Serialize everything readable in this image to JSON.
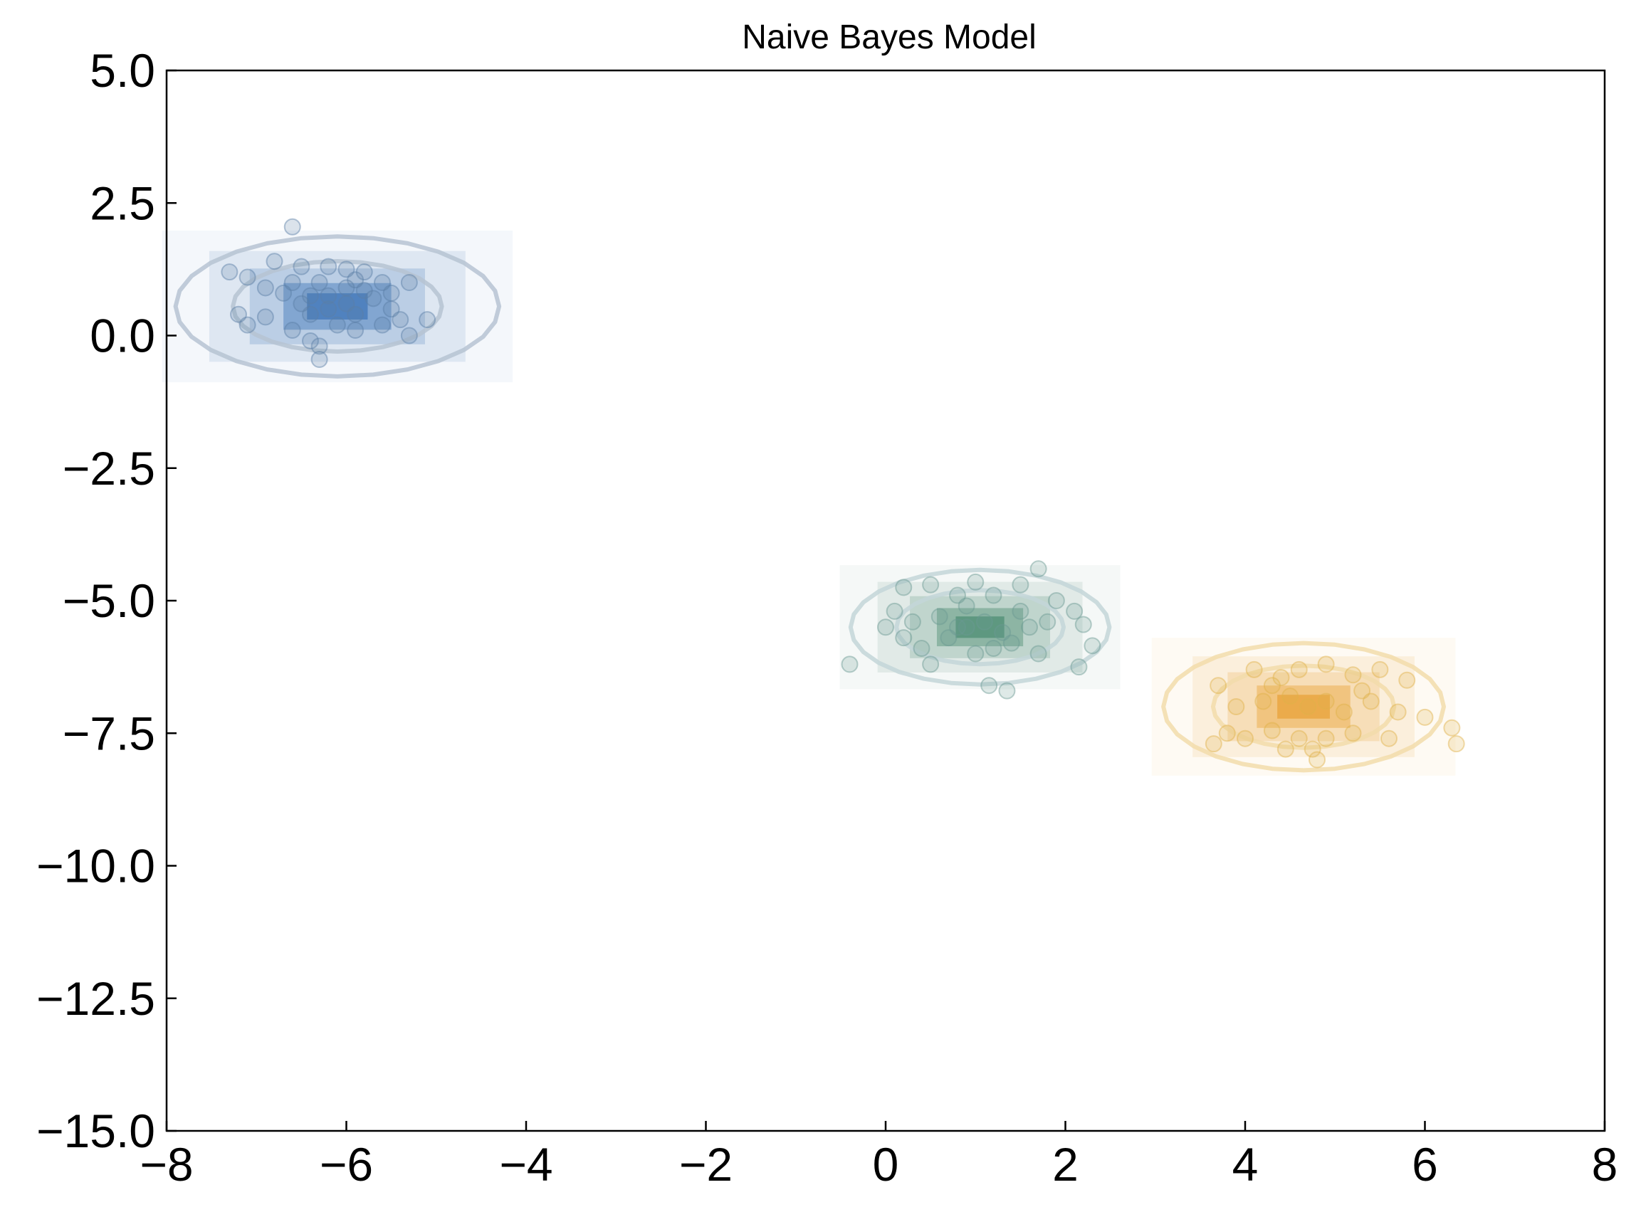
{
  "chart_data": {
    "type": "scatter",
    "title": "Naive Bayes Model",
    "xlabel": "",
    "ylabel": "",
    "xlim": [
      -8,
      8
    ],
    "ylim": [
      -15,
      5
    ],
    "xticks": [
      -8,
      -6,
      -4,
      -2,
      0,
      2,
      4,
      6,
      8
    ],
    "xtick_labels": [
      "−8",
      "−6",
      "−4",
      "−2",
      "0",
      "2",
      "4",
      "6",
      "8"
    ],
    "yticks": [
      5,
      2.5,
      0,
      -2.5,
      -5,
      -7.5,
      -10,
      -12.5,
      -15
    ],
    "ytick_labels": [
      "5.0",
      "2.5",
      "0.0",
      "−2.5",
      "−5.0",
      "−7.5",
      "−10.0",
      "−12.5",
      "−15.0"
    ],
    "grid": false,
    "legend": "none",
    "series": [
      {
        "color": "#5b7fa6",
        "density_color": "#3f76b8",
        "contour_color": "#b6c3d2",
        "mean": [
          -6.1,
          0.55
        ],
        "std": [
          0.75,
          0.55
        ],
        "points": [
          [
            -7.1,
            1.1
          ],
          [
            -6.8,
            1.4
          ],
          [
            -6.6,
            2.05
          ],
          [
            -6.5,
            1.3
          ],
          [
            -6.3,
            1.0
          ],
          [
            -6.2,
            1.3
          ],
          [
            -6.0,
            1.25
          ],
          [
            -5.8,
            1.2
          ],
          [
            -5.6,
            1.0
          ],
          [
            -5.3,
            1.0
          ],
          [
            -6.9,
            0.9
          ],
          [
            -6.7,
            0.8
          ],
          [
            -6.5,
            0.6
          ],
          [
            -6.4,
            0.4
          ],
          [
            -6.2,
            0.5
          ],
          [
            -6.0,
            0.6
          ],
          [
            -5.9,
            0.4
          ],
          [
            -5.7,
            0.7
          ],
          [
            -5.5,
            0.5
          ],
          [
            -5.4,
            0.3
          ],
          [
            -7.3,
            1.2
          ],
          [
            -7.2,
            0.4
          ],
          [
            -7.1,
            0.2
          ],
          [
            -6.9,
            0.35
          ],
          [
            -6.6,
            0.1
          ],
          [
            -6.4,
            -0.1
          ],
          [
            -6.3,
            -0.2
          ],
          [
            -6.3,
            -0.45
          ],
          [
            -6.1,
            0.2
          ],
          [
            -5.9,
            0.1
          ],
          [
            -5.6,
            0.2
          ],
          [
            -5.3,
            0.0
          ],
          [
            -5.1,
            0.3
          ],
          [
            -6.0,
            0.9
          ],
          [
            -5.8,
            0.85
          ],
          [
            -6.6,
            1.0
          ],
          [
            -5.5,
            0.8
          ],
          [
            -6.2,
            0.75
          ],
          [
            -5.9,
            1.05
          ],
          [
            -6.4,
            0.75
          ]
        ]
      },
      {
        "color": "#6b9a92",
        "density_color": "#4f8f74",
        "contour_color": "#c3d6d8",
        "mean": [
          1.05,
          -5.5
        ],
        "std": [
          0.6,
          0.45
        ],
        "points": [
          [
            0.2,
            -4.75
          ],
          [
            0.5,
            -4.7
          ],
          [
            0.8,
            -4.9
          ],
          [
            1.0,
            -4.65
          ],
          [
            1.2,
            -4.9
          ],
          [
            1.5,
            -4.7
          ],
          [
            1.7,
            -4.4
          ],
          [
            1.9,
            -5.0
          ],
          [
            2.1,
            -5.2
          ],
          [
            0.1,
            -5.2
          ],
          [
            0.3,
            -5.4
          ],
          [
            0.6,
            -5.3
          ],
          [
            0.9,
            -5.5
          ],
          [
            1.1,
            -5.4
          ],
          [
            1.3,
            -5.6
          ],
          [
            1.6,
            -5.5
          ],
          [
            1.8,
            -5.4
          ],
          [
            2.2,
            -5.45
          ],
          [
            2.3,
            -5.85
          ],
          [
            0.2,
            -5.7
          ],
          [
            0.4,
            -5.9
          ],
          [
            0.7,
            -5.7
          ],
          [
            1.0,
            -6.0
          ],
          [
            1.2,
            -5.9
          ],
          [
            1.4,
            -5.8
          ],
          [
            1.7,
            -6.0
          ],
          [
            2.15,
            -6.25
          ],
          [
            0.5,
            -6.2
          ],
          [
            1.15,
            -6.6
          ],
          [
            1.35,
            -6.7
          ],
          [
            -0.4,
            -6.2
          ],
          [
            0.0,
            -5.5
          ],
          [
            0.8,
            -5.5
          ],
          [
            1.5,
            -5.2
          ],
          [
            0.9,
            -5.1
          ]
        ]
      },
      {
        "color": "#e0b24a",
        "density_color": "#e8a33a",
        "contour_color": "#f2dcaa",
        "mean": [
          4.65,
          -7.0
        ],
        "std": [
          0.65,
          0.5
        ],
        "points": [
          [
            3.7,
            -6.6
          ],
          [
            4.1,
            -6.3
          ],
          [
            4.4,
            -6.45
          ],
          [
            4.6,
            -6.3
          ],
          [
            4.9,
            -6.2
          ],
          [
            5.2,
            -6.4
          ],
          [
            5.5,
            -6.3
          ],
          [
            5.8,
            -6.5
          ],
          [
            3.9,
            -7.0
          ],
          [
            4.2,
            -6.9
          ],
          [
            4.5,
            -6.8
          ],
          [
            4.7,
            -7.0
          ],
          [
            4.9,
            -6.9
          ],
          [
            5.1,
            -7.1
          ],
          [
            5.4,
            -6.9
          ],
          [
            5.7,
            -7.1
          ],
          [
            6.0,
            -7.2
          ],
          [
            3.8,
            -7.5
          ],
          [
            4.0,
            -7.6
          ],
          [
            4.3,
            -7.45
          ],
          [
            4.6,
            -7.6
          ],
          [
            4.9,
            -7.6
          ],
          [
            5.2,
            -7.5
          ],
          [
            5.6,
            -7.6
          ],
          [
            6.3,
            -7.4
          ],
          [
            6.35,
            -7.7
          ],
          [
            4.45,
            -7.8
          ],
          [
            4.75,
            -7.8
          ],
          [
            3.65,
            -7.7
          ],
          [
            4.8,
            -8.0
          ],
          [
            5.3,
            -6.7
          ],
          [
            4.3,
            -6.6
          ]
        ]
      }
    ]
  }
}
